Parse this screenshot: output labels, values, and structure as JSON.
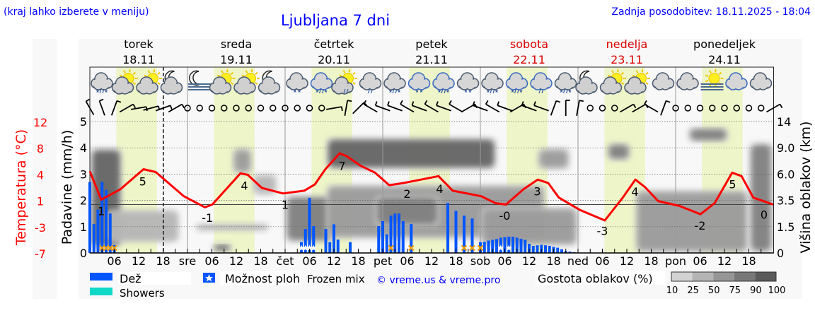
{
  "header": {
    "hint": "(kraj lahko izberete v meniju)",
    "title": "Ljubljana 7 dni",
    "updated": "Zadnja posodobitev: 18.11.2025 - 18:04"
  },
  "colors": {
    "text_blue": "#0000ff",
    "temperature": "#ff0000",
    "rain": "#0055ff",
    "showers": "#10d8c8",
    "daylight": "#eef5c8",
    "panel": "#f8f8f8"
  },
  "days": [
    {
      "name": "torek",
      "date": "18.11",
      "abbr": "",
      "weekend": false
    },
    {
      "name": "sreda",
      "date": "19.11",
      "abbr": "sre",
      "weekend": false
    },
    {
      "name": "četrtek",
      "date": "20.11",
      "abbr": "čet",
      "weekend": false
    },
    {
      "name": "petek",
      "date": "21.11",
      "abbr": "pet",
      "weekend": false
    },
    {
      "name": "sobota",
      "date": "22.11",
      "abbr": "sob",
      "weekend": true
    },
    {
      "name": "nedelja",
      "date": "23.11",
      "abbr": "ned",
      "weekend": true
    },
    {
      "name": "ponedeljek",
      "date": "24.11",
      "abbr": "pon",
      "weekend": false
    }
  ],
  "hour_labels": [
    "06",
    "12",
    "18"
  ],
  "now_hour": 18.07,
  "daylight_hours": [
    6.5,
    16.5
  ],
  "axes": {
    "temperature": {
      "label": "Temperatura (°C)",
      "ticks": [
        "12",
        "8",
        "4",
        "1",
        "-3",
        "-7"
      ],
      "range": [
        -7,
        12
      ]
    },
    "precipitation": {
      "label": "Padavine (mm/h)",
      "ticks": [
        "0",
        "1",
        "2",
        "3",
        "4",
        "5"
      ],
      "range": [
        0,
        5
      ]
    },
    "cloud_height": {
      "label": "Višina oblakov (km)",
      "ticks": [
        "0",
        "1.5",
        "3.5",
        "6.0",
        "9.0",
        "14"
      ]
    }
  },
  "weather_icons": [
    "cloud-snow-rain",
    "sun-cloud",
    "sun-cloud",
    "moon-cloud",
    "moon-fog",
    "sun-cloud",
    "sun-cloud",
    "moon-cloud",
    "cloud-snow",
    "cloud-snow-rain-blue",
    "sun-cloud-rain",
    "cloud-rain",
    "cloud-snow-rain",
    "cloud-snow-blue",
    "cloud-snow-rain-blue",
    "cloud-snow",
    "cloud-snow-rain",
    "cloud-snow-rain-blue",
    "cloud-rain-blue",
    "cloud-snow-rain",
    "moon-cloud",
    "sun-cloud",
    "sun-cloud",
    "cloud",
    "cloud",
    "sun-fog",
    "cloud-blue",
    "cloud"
  ],
  "wind": [
    330,
    340,
    20,
    60,
    80,
    75,
    70,
    60,
    "calm",
    "calm",
    "calm",
    "calm",
    "calm",
    "calm",
    "calm",
    "calm",
    "calm",
    "calm",
    "calm",
    "calm",
    80,
    10,
    45,
    300,
    290,
    290,
    300,
    290,
    300,
    290,
    300,
    60,
    290,
    300,
    290,
    60,
    290,
    290,
    20,
    0,
    10,
    "calm",
    "calm",
    "calm",
    60,
    60,
    300,
    20,
    "calm",
    "calm",
    "calm",
    "calm",
    "calm",
    "calm",
    "calm",
    "calm",
    60,
    290
  ],
  "chart_data": [
    {
      "type": "bar",
      "title": "",
      "ylabel": "Padavine (mm/h)",
      "ylim": [
        0,
        5
      ],
      "x_unit": "hours from 18.11 00:00",
      "series": [
        {
          "name": "Dež",
          "points": [
            [
              0,
              2.7
            ],
            [
              1,
              1.1
            ],
            [
              2,
              1.65
            ],
            [
              3,
              2.7
            ],
            [
              4,
              2.4
            ],
            [
              5,
              1.5
            ],
            [
              6,
              0.3
            ],
            [
              52,
              0.41
            ],
            [
              53,
              0.91
            ],
            [
              54,
              2.1
            ],
            [
              55,
              1.02
            ],
            [
              58,
              0.91
            ],
            [
              59,
              0.41
            ],
            [
              60,
              1.09
            ],
            [
              61,
              0.51
            ],
            [
              64,
              0.41
            ],
            [
              71,
              1.02
            ],
            [
              72,
              1.21
            ],
            [
              73,
              0.71
            ],
            [
              74,
              1.42
            ],
            [
              75,
              1.5
            ],
            [
              76,
              1.5
            ],
            [
              77,
              1.21
            ],
            [
              79,
              1.1
            ],
            [
              88,
              1.9
            ],
            [
              90,
              1.6
            ],
            [
              92,
              1.42
            ],
            [
              94,
              1.31
            ],
            [
              96,
              0.41
            ],
            [
              97,
              0.42
            ],
            [
              98,
              0.47
            ],
            [
              99,
              0.5
            ],
            [
              100,
              0.53
            ],
            [
              101,
              0.58
            ],
            [
              102,
              0.6
            ],
            [
              103,
              0.62
            ],
            [
              104,
              0.62
            ],
            [
              105,
              0.58
            ],
            [
              106,
              0.54
            ],
            [
              107,
              0.5
            ],
            [
              108,
              0.35
            ],
            [
              109,
              0.27
            ],
            [
              110,
              0.29
            ],
            [
              111,
              0.31
            ],
            [
              112,
              0.29
            ],
            [
              113,
              0.27
            ],
            [
              114,
              0.23
            ],
            [
              115,
              0.2
            ],
            [
              116,
              0.14
            ],
            [
              117,
              0.07
            ],
            [
              118,
              0.05
            ],
            [
              119,
              0.03
            ]
          ]
        }
      ],
      "markers": [
        {
          "hour": 3,
          "type": "frozen-mix"
        },
        {
          "hour": 4,
          "type": "frozen-mix"
        },
        {
          "hour": 5,
          "type": "frozen-mix"
        },
        {
          "hour": 6,
          "type": "frozen-mix"
        },
        {
          "hour": 52,
          "type": "snow"
        },
        {
          "hour": 53,
          "type": "snow"
        },
        {
          "hour": 54,
          "type": "snow"
        },
        {
          "hour": 55,
          "type": "snow"
        },
        {
          "hour": 74,
          "type": "frozen-mix"
        },
        {
          "hour": 79,
          "type": "frozen-mix"
        },
        {
          "hour": 92,
          "type": "frozen-mix"
        },
        {
          "hour": 94,
          "type": "frozen-mix"
        },
        {
          "hour": 96,
          "type": "frozen-mix"
        },
        {
          "hour": 101,
          "type": "snow"
        },
        {
          "hour": 103,
          "type": "snow"
        }
      ]
    },
    {
      "type": "line",
      "ylabel": "Temperatura (°C)",
      "ylim": [
        -7,
        12
      ],
      "series": [
        {
          "points": [
            [
              0,
              4.8
            ],
            [
              2.8,
              0.7
            ],
            [
              7.5,
              2.2
            ],
            [
              13.2,
              5.1
            ],
            [
              16.2,
              4.7
            ],
            [
              23.1,
              1.2
            ],
            [
              28.3,
              -0.4
            ],
            [
              30.1,
              0.0
            ],
            [
              37,
              4.5
            ],
            [
              38.8,
              4.3
            ],
            [
              42.3,
              2.4
            ],
            [
              47.5,
              1.6
            ],
            [
              52.7,
              2.0
            ],
            [
              55.3,
              2.9
            ],
            [
              57.9,
              5.1
            ],
            [
              61.4,
              7.4
            ],
            [
              63.1,
              7.0
            ],
            [
              66.6,
              5.6
            ],
            [
              70.1,
              4.6
            ],
            [
              73.6,
              2.8
            ],
            [
              77,
              3.1
            ],
            [
              80.5,
              3.5
            ],
            [
              85.7,
              4.1
            ],
            [
              89.2,
              2.0
            ],
            [
              96.2,
              1.2
            ],
            [
              99.7,
              0.2
            ],
            [
              102.3,
              0.0
            ],
            [
              106.6,
              2.2
            ],
            [
              110.1,
              3.6
            ],
            [
              112.7,
              3.1
            ],
            [
              115.3,
              1.0
            ],
            [
              120.5,
              -0.8
            ],
            [
              126.6,
              -2.3
            ],
            [
              131,
              1.0
            ],
            [
              134.1,
              3.6
            ],
            [
              136.5,
              2.5
            ],
            [
              139.7,
              0.5
            ],
            [
              144.9,
              -0.2
            ],
            [
              150.1,
              -1.4
            ],
            [
              153.6,
              0.2
            ],
            [
              157.9,
              4.6
            ],
            [
              160.2,
              4.1
            ],
            [
              163.1,
              1.0
            ],
            [
              168,
              0.0
            ]
          ]
        }
      ],
      "labels": [
        {
          "hour": 2.8,
          "text": "1"
        },
        {
          "hour": 13,
          "text": "5"
        },
        {
          "hour": 28.9,
          "text": "-1"
        },
        {
          "hour": 38,
          "text": "4"
        },
        {
          "hour": 48,
          "text": "1"
        },
        {
          "hour": 62,
          "text": "7"
        },
        {
          "hour": 78,
          "text": "2"
        },
        {
          "hour": 86,
          "text": "4"
        },
        {
          "hour": 102,
          "text": "-0"
        },
        {
          "hour": 110,
          "text": "3"
        },
        {
          "hour": 126,
          "text": "-3"
        },
        {
          "hour": 134,
          "text": "4"
        },
        {
          "hour": 150,
          "text": "-2"
        },
        {
          "hour": 158,
          "text": "5"
        },
        {
          "hour": 167,
          "text": "0"
        }
      ]
    },
    {
      "type": "heatmap",
      "ylabel": "Višina oblakov (km)",
      "legend_title": "Gostota oblakov (%)",
      "legend_levels": [
        "10",
        "25",
        "50",
        "75",
        "90",
        "100"
      ],
      "legend_colors": [
        "#d2d2d2",
        "#b4b4b4",
        "#969696",
        "#787878",
        "#5a5a5a"
      ],
      "regions": [
        {
          "h": [
            0,
            8
          ],
          "km": [
            0.3,
            9
          ],
          "density": 90
        },
        {
          "h": [
            4,
            22
          ],
          "km": [
            0.6,
            2.8
          ],
          "density": 40
        },
        {
          "h": [
            30,
            35
          ],
          "km": [
            0,
            0.6
          ],
          "density": 90
        },
        {
          "h": [
            26,
            44
          ],
          "km": [
            1.2,
            1.8
          ],
          "density": 40
        },
        {
          "h": [
            35,
            40
          ],
          "km": [
            6,
            9
          ],
          "density": 50
        },
        {
          "h": [
            40,
            46
          ],
          "km": [
            4,
            6
          ],
          "density": 40
        },
        {
          "h": [
            48,
            60
          ],
          "km": [
            0.6,
            4
          ],
          "density": 75
        },
        {
          "h": [
            58,
            100
          ],
          "km": [
            6.5,
            11
          ],
          "density": 90
        },
        {
          "h": [
            58,
            112
          ],
          "km": [
            0.8,
            5
          ],
          "density": 60
        },
        {
          "h": [
            70,
            86
          ],
          "km": [
            1.5,
            4
          ],
          "density": 75
        },
        {
          "h": [
            96,
            120
          ],
          "km": [
            0.4,
            3
          ],
          "density": 50
        },
        {
          "h": [
            110,
            118
          ],
          "km": [
            6.5,
            9
          ],
          "density": 50
        },
        {
          "h": [
            127,
            133
          ],
          "km": [
            7.5,
            10
          ],
          "density": 80
        },
        {
          "h": [
            134,
            162
          ],
          "km": [
            0,
            4.5
          ],
          "density": 50
        },
        {
          "h": [
            147,
            157
          ],
          "km": [
            10,
            13
          ],
          "density": 80
        },
        {
          "h": [
            162,
            168
          ],
          "km": [
            0,
            10
          ],
          "density": 85
        }
      ]
    }
  ],
  "legend": {
    "rain": "Dež",
    "showers": "Showers",
    "showers_chance": "Možnost ploh",
    "frozen_mix": "Frozen mix",
    "credit": "© vreme.us & vreme.pro",
    "cloud_density": "Gostota oblakov (%)"
  }
}
